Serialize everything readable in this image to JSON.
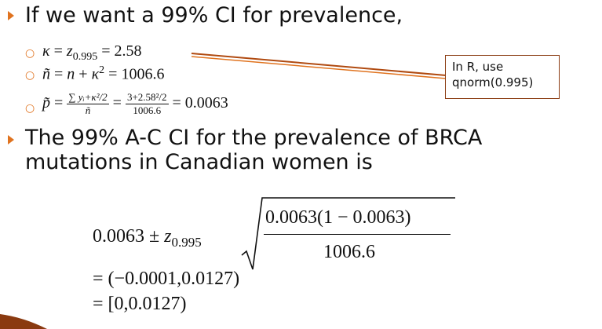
{
  "bullets": {
    "b1": "If we want a 99% CI for prevalence,",
    "b2_line1": "The 99% A-C CI for the prevalence of BRCA",
    "b2_line2": "mutations in Canadian women is"
  },
  "sub1": {
    "kappa": "κ",
    "eq": " = ",
    "z": "z",
    "z_sub": "0.995",
    "val": " = 2.58"
  },
  "sub2": {
    "n_tilde": "ñ",
    "eq": " = ",
    "n": "n",
    "plus": " + ",
    "kappa": "κ",
    "sup": "2",
    "val": " = 1006.6"
  },
  "sub3": {
    "p_tilde": "p̃",
    "eq": " = ",
    "frac1_num": "∑ yᵢ+κ²/2",
    "frac1_den": "ñ",
    "eq2": " = ",
    "frac2_num": "3+2.58²/2",
    "frac2_den": "1006.6",
    "val": " = 0.0063"
  },
  "callout": {
    "line1": "In R, use",
    "line2": "qnorm(0.995)"
  },
  "formula": {
    "lead": "0.0063 ± ",
    "z": "z",
    "z_sub": "0.995",
    "sqrt_num": "0.0063(1 − 0.0063)",
    "sqrt_den": "1006.6",
    "line2": "= (−0.0001,0.0127)",
    "line3": "= [0,0.0127)"
  },
  "colors": {
    "accent": "#e0731f",
    "callout_border": "#8a3a10",
    "connector": "#b04a10"
  }
}
